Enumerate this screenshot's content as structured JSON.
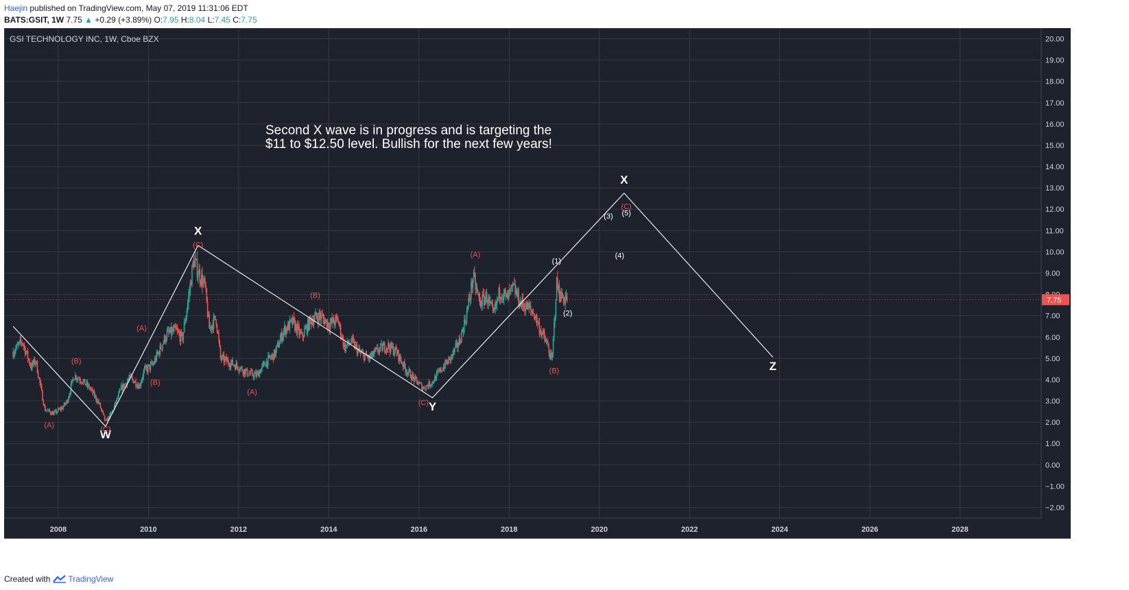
{
  "header": {
    "author": "Haejin",
    "published": "published on TradingView.com, May 07, 2019 11:31:06 EDT",
    "symbol": "BATS:GSIT, 1W",
    "last": "7.75",
    "change": "+0.29 (+3.89%)",
    "o_label": "O:",
    "o_val": "7.95",
    "h_label": "H:",
    "h_val": "8.04",
    "l_label": "L:",
    "l_val": "7.45",
    "c_label": "C:",
    "c_val": "7.75"
  },
  "footer": {
    "created": "Created with",
    "brand": "TradingView"
  },
  "colors": {
    "background": "#1e222d",
    "grid": "#363a45",
    "up": "#26a69a",
    "down": "#ef5350",
    "text": "#d1d4dc",
    "label_red": "#ef5350"
  },
  "chart_data": {
    "type": "candlestick",
    "title": "GSI TECHNOLOGY INC, 1W, Cboe BZX",
    "annotation": "Second X wave is in progress and is targeting the $11 to $12.50 level. Bullish for the next few years!",
    "annotation_lines": [
      "Second X wave is in progress and is targeting the",
      "$11 to $12.50 level. Bullish for the next few years!"
    ],
    "ylim": [
      -2.5,
      20.5
    ],
    "y_ticks": [
      "20.00",
      "19.00",
      "18.00",
      "17.00",
      "16.00",
      "15.00",
      "14.00",
      "13.00",
      "12.00",
      "11.00",
      "10.00",
      "9.00",
      "8.00",
      "7.00",
      "6.00",
      "5.00",
      "4.00",
      "3.00",
      "2.00",
      "1.00",
      "0.00",
      "−1.00",
      "−2.00"
    ],
    "xlim": [
      2006.8,
      2029.8
    ],
    "x_ticks": [
      "2008",
      "2010",
      "2012",
      "2014",
      "2016",
      "2018",
      "2020",
      "2022",
      "2024",
      "2026",
      "2028"
    ],
    "last_price_label": "7.75",
    "last_price": 7.75,
    "price_path": [
      [
        2007.0,
        5.3
      ],
      [
        2007.2,
        5.8
      ],
      [
        2007.4,
        4.6
      ],
      [
        2007.5,
        4.9
      ],
      [
        2007.7,
        2.6
      ],
      [
        2007.9,
        2.4
      ],
      [
        2008.1,
        2.7
      ],
      [
        2008.2,
        3.0
      ],
      [
        2008.35,
        4.2
      ],
      [
        2008.5,
        4.0
      ],
      [
        2008.7,
        3.6
      ],
      [
        2008.9,
        2.9
      ],
      [
        2009.05,
        2.0
      ],
      [
        2009.2,
        2.5
      ],
      [
        2009.4,
        3.6
      ],
      [
        2009.6,
        4.1
      ],
      [
        2009.8,
        3.7
      ],
      [
        2009.9,
        4.4
      ],
      [
        2010.1,
        4.7
      ],
      [
        2010.25,
        5.4
      ],
      [
        2010.4,
        6.1
      ],
      [
        2010.6,
        6.3
      ],
      [
        2010.75,
        5.9
      ],
      [
        2010.9,
        8.0
      ],
      [
        2011.0,
        9.6
      ],
      [
        2011.1,
        9.1
      ],
      [
        2011.25,
        8.4
      ],
      [
        2011.35,
        6.4
      ],
      [
        2011.5,
        6.9
      ],
      [
        2011.6,
        5.0
      ],
      [
        2011.8,
        4.8
      ],
      [
        2012.0,
        4.6
      ],
      [
        2012.2,
        4.3
      ],
      [
        2012.4,
        4.2
      ],
      [
        2012.6,
        4.8
      ],
      [
        2012.8,
        5.2
      ],
      [
        2013.0,
        6.3
      ],
      [
        2013.2,
        6.7
      ],
      [
        2013.4,
        6.0
      ],
      [
        2013.6,
        6.8
      ],
      [
        2013.8,
        7.0
      ],
      [
        2014.0,
        6.6
      ],
      [
        2014.2,
        6.8
      ],
      [
        2014.35,
        5.5
      ],
      [
        2014.5,
        5.8
      ],
      [
        2014.7,
        5.2
      ],
      [
        2014.9,
        5.0
      ],
      [
        2015.1,
        5.4
      ],
      [
        2015.3,
        5.6
      ],
      [
        2015.5,
        5.3
      ],
      [
        2015.7,
        4.5
      ],
      [
        2015.9,
        4.0
      ],
      [
        2016.1,
        3.6
      ],
      [
        2016.3,
        3.9
      ],
      [
        2016.5,
        4.5
      ],
      [
        2016.7,
        5.0
      ],
      [
        2016.9,
        5.8
      ],
      [
        2017.05,
        7.0
      ],
      [
        2017.2,
        8.8
      ],
      [
        2017.35,
        7.6
      ],
      [
        2017.5,
        7.9
      ],
      [
        2017.65,
        7.0
      ],
      [
        2017.8,
        8.2
      ],
      [
        2017.95,
        7.8
      ],
      [
        2018.1,
        8.3
      ],
      [
        2018.25,
        7.6
      ],
      [
        2018.4,
        7.4
      ],
      [
        2018.55,
        7.1
      ],
      [
        2018.7,
        6.3
      ],
      [
        2018.85,
        5.6
      ],
      [
        2018.95,
        4.8
      ],
      [
        2019.05,
        8.5
      ],
      [
        2019.15,
        7.9
      ],
      [
        2019.3,
        7.75
      ]
    ],
    "wave_lines": [
      {
        "name": "wxy-path",
        "points": [
          [
            2007.0,
            6.5
          ],
          [
            2009.05,
            1.8
          ],
          [
            2011.1,
            10.3
          ],
          [
            2016.3,
            3.15
          ],
          [
            2020.55,
            12.75
          ],
          [
            2023.85,
            5.05
          ]
        ]
      }
    ],
    "labels": [
      {
        "text": "W",
        "x": 2009.05,
        "y": 1.25,
        "color": "#ffffff",
        "size": 17
      },
      {
        "text": "X",
        "x": 2011.1,
        "y": 10.8,
        "color": "#ffffff",
        "size": 17
      },
      {
        "text": "Y",
        "x": 2016.3,
        "y": 2.55,
        "color": "#ffffff",
        "size": 17
      },
      {
        "text": "X",
        "x": 2020.55,
        "y": 13.2,
        "color": "#ffffff",
        "size": 17
      },
      {
        "text": "Z",
        "x": 2023.85,
        "y": 4.45,
        "color": "#ffffff",
        "size": 17
      },
      {
        "text": "(A)",
        "x": 2007.8,
        "y": 1.75,
        "color": "#ef5350",
        "size": 11
      },
      {
        "text": "(B)",
        "x": 2008.4,
        "y": 4.75,
        "color": "#ef5350",
        "size": 11
      },
      {
        "text": "(C)",
        "x": 2009.05,
        "y": 1.55,
        "color": "#ef5350",
        "size": 11
      },
      {
        "text": "(A)",
        "x": 2009.85,
        "y": 6.3,
        "color": "#ef5350",
        "size": 11
      },
      {
        "text": "(B)",
        "x": 2010.15,
        "y": 3.75,
        "color": "#ef5350",
        "size": 11
      },
      {
        "text": "(C)",
        "x": 2011.1,
        "y": 10.2,
        "color": "#ef5350",
        "size": 11
      },
      {
        "text": "(A)",
        "x": 2012.3,
        "y": 3.3,
        "color": "#ef5350",
        "size": 11
      },
      {
        "text": "(B)",
        "x": 2013.7,
        "y": 7.85,
        "color": "#ef5350",
        "size": 11
      },
      {
        "text": "(C)",
        "x": 2016.1,
        "y": 2.8,
        "color": "#ef5350",
        "size": 11
      },
      {
        "text": "(A)",
        "x": 2017.25,
        "y": 9.75,
        "color": "#ef5350",
        "size": 11
      },
      {
        "text": "(B)",
        "x": 2019.0,
        "y": 4.3,
        "color": "#ef5350",
        "size": 11
      },
      {
        "text": "(C)",
        "x": 2020.6,
        "y": 12.0,
        "color": "#ef5350",
        "size": 11
      },
      {
        "text": "(1)",
        "x": 2019.05,
        "y": 9.45,
        "color": "#ffffff",
        "size": 11
      },
      {
        "text": "(2)",
        "x": 2019.3,
        "y": 7.0,
        "color": "#ffffff",
        "size": 11
      },
      {
        "text": "(3)",
        "x": 2020.2,
        "y": 11.55,
        "color": "#ffffff",
        "size": 11
      },
      {
        "text": "(4)",
        "x": 2020.45,
        "y": 9.7,
        "color": "#ffffff",
        "size": 11
      },
      {
        "text": "(5)",
        "x": 2020.6,
        "y": 11.7,
        "color": "#ffffff",
        "size": 11
      }
    ]
  }
}
